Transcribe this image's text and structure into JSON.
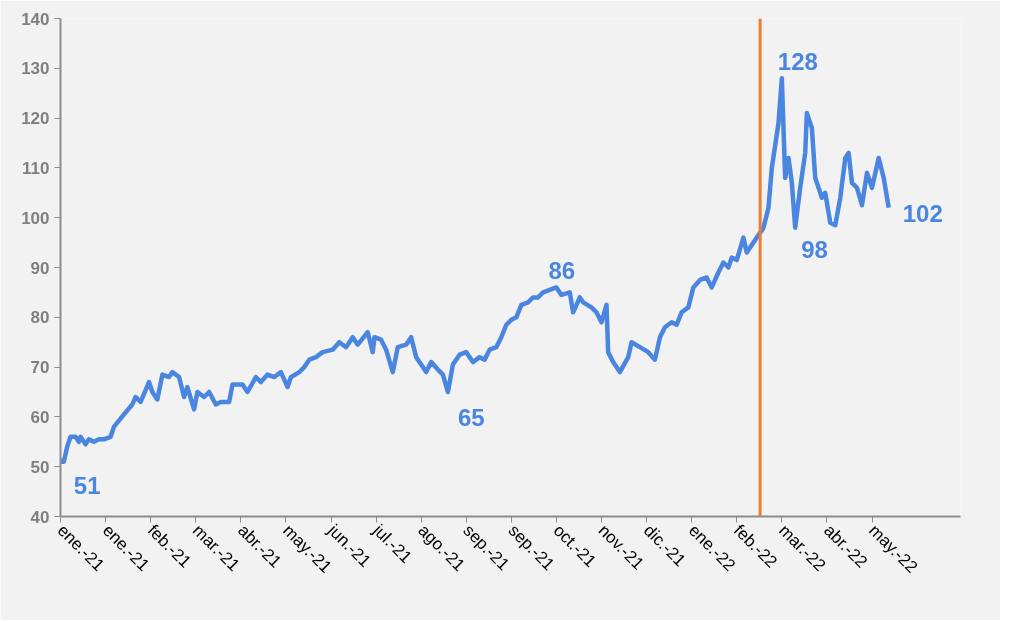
{
  "chart_data": {
    "type": "line",
    "x": [
      "2021-01-01",
      "2021-01-02",
      "2021-01-03",
      "2021-01-05",
      "2021-01-07",
      "2021-01-10",
      "2021-01-12",
      "2021-01-13",
      "2021-01-16",
      "2021-01-18",
      "2021-01-21",
      "2021-01-24",
      "2021-01-27",
      "2021-01-31",
      "2021-02-02",
      "2021-02-08",
      "2021-02-13",
      "2021-02-15",
      "2021-02-18",
      "2021-02-23",
      "2021-02-25",
      "2021-02-28",
      "2021-03-03",
      "2021-03-07",
      "2021-03-09",
      "2021-03-13",
      "2021-03-16",
      "2021-03-18",
      "2021-03-22",
      "2021-03-24",
      "2021-03-28",
      "2021-03-31",
      "2021-04-04",
      "2021-04-07",
      "2021-04-12",
      "2021-04-14",
      "2021-04-20",
      "2021-04-23",
      "2021-04-28",
      "2021-05-01",
      "2021-05-05",
      "2021-05-09",
      "2021-05-13",
      "2021-05-17",
      "2021-05-19",
      "2021-05-24",
      "2021-05-27",
      "2021-05-30",
      "2021-06-03",
      "2021-06-07",
      "2021-06-13",
      "2021-06-17",
      "2021-06-21",
      "2021-06-25",
      "2021-06-28",
      "2021-07-04",
      "2021-07-07",
      "2021-07-08",
      "2021-07-12",
      "2021-07-15",
      "2021-07-19",
      "2021-07-22",
      "2021-07-27",
      "2021-07-30",
      "2021-08-02",
      "2021-08-05",
      "2021-08-08",
      "2021-08-11",
      "2021-08-15",
      "2021-08-18",
      "2021-08-21",
      "2021-08-24",
      "2021-08-28",
      "2021-09-01",
      "2021-09-05",
      "2021-09-09",
      "2021-09-12",
      "2021-09-15",
      "2021-09-19",
      "2021-09-22",
      "2021-09-25",
      "2021-09-28",
      "2021-10-01",
      "2021-10-04",
      "2021-10-08",
      "2021-10-11",
      "2021-10-14",
      "2021-10-17",
      "2021-10-21",
      "2021-10-25",
      "2021-10-28",
      "2021-11-02",
      "2021-11-04",
      "2021-11-08",
      "2021-11-10",
      "2021-11-15",
      "2021-11-18",
      "2021-11-21",
      "2021-11-24",
      "2021-11-25",
      "2021-11-28",
      "2021-12-02",
      "2021-12-07",
      "2021-12-09",
      "2021-12-14",
      "2021-12-19",
      "2021-12-23",
      "2021-12-26",
      "2021-12-29",
      "2022-01-02",
      "2022-01-05",
      "2022-01-08",
      "2022-01-12",
      "2022-01-15",
      "2022-01-19",
      "2022-01-23",
      "2022-01-26",
      "2022-01-30",
      "2022-02-02",
      "2022-02-05",
      "2022-02-07",
      "2022-02-10",
      "2022-02-14",
      "2022-02-16",
      "2022-02-20",
      "2022-02-22",
      "2022-02-26",
      "2022-03-01",
      "2022-03-03",
      "2022-03-07",
      "2022-03-09",
      "2022-03-11",
      "2022-03-13",
      "2022-03-15",
      "2022-03-17",
      "2022-03-20",
      "2022-03-23",
      "2022-03-24",
      "2022-03-27",
      "2022-03-29",
      "2022-04-02",
      "2022-04-04",
      "2022-04-07",
      "2022-04-10",
      "2022-04-13",
      "2022-04-16",
      "2022-04-18",
      "2022-04-20",
      "2022-04-23",
      "2022-04-26",
      "2022-04-29",
      "2022-05-02",
      "2022-05-06",
      "2022-05-09",
      "2022-05-12"
    ],
    "series": [
      {
        "color": "#4a86e0",
        "values": [
          51.5,
          51,
          51,
          54,
          56,
          56,
          55,
          56,
          54.5,
          55.5,
          55,
          55.5,
          55.5,
          56,
          58,
          60.5,
          62.5,
          64,
          63,
          67,
          65,
          63.5,
          68.5,
          68,
          69,
          68,
          64,
          66,
          61.5,
          65,
          64,
          65,
          62.5,
          63,
          63,
          66.5,
          66.5,
          65,
          68,
          67,
          68.5,
          68,
          69,
          66,
          68,
          69,
          70,
          71.5,
          72,
          73,
          73.5,
          75,
          74,
          76,
          74.5,
          77,
          73,
          76,
          75.5,
          73.5,
          69,
          74,
          74.5,
          76,
          72,
          70.5,
          69,
          71,
          69.5,
          68.5,
          65,
          70.5,
          72.5,
          73,
          71,
          72,
          71.5,
          73.5,
          74,
          76,
          78.5,
          79.5,
          80,
          82.5,
          83,
          84,
          84,
          85,
          85.5,
          86,
          84.5,
          85,
          81,
          84,
          83,
          82,
          81,
          79,
          82.5,
          73,
          71,
          69,
          72,
          75,
          74,
          73,
          71.5,
          76,
          78,
          79,
          78.5,
          81,
          82,
          86,
          87.5,
          88,
          86,
          89,
          91,
          90,
          92,
          91.5,
          96,
          93,
          95,
          96,
          98,
          102,
          110,
          119,
          128,
          108,
          112,
          107,
          98,
          106,
          113,
          121,
          118,
          108,
          104,
          105,
          99,
          98.5,
          104,
          112,
          113,
          107,
          106,
          102.5,
          109,
          106,
          112,
          108,
          102
        ]
      }
    ],
    "xlim": [
      "2021-01-01",
      "2022-06-24"
    ],
    "xticks": [
      {
        "value": "2021-01-01",
        "label": "ene.-21"
      },
      {
        "value": "2021-01-28",
        "label": "ene.-21"
      },
      {
        "value": "2021-02-24",
        "label": "feb.-21"
      },
      {
        "value": "2021-03-23",
        "label": "mar.-21"
      },
      {
        "value": "2021-04-19",
        "label": "abr.-21"
      },
      {
        "value": "2021-05-16",
        "label": "may.-21"
      },
      {
        "value": "2021-06-12",
        "label": "jun.-21"
      },
      {
        "value": "2021-07-09",
        "label": "jul.-21"
      },
      {
        "value": "2021-08-05",
        "label": "ago.-21"
      },
      {
        "value": "2021-09-01",
        "label": "sep.-21"
      },
      {
        "value": "2021-09-28",
        "label": "sep.-21"
      },
      {
        "value": "2021-10-25",
        "label": "oct.-21"
      },
      {
        "value": "2021-11-21",
        "label": "nov.-21"
      },
      {
        "value": "2021-12-18",
        "label": "dic.-21"
      },
      {
        "value": "2022-01-14",
        "label": "ene.-22"
      },
      {
        "value": "2022-02-10",
        "label": "feb.-22"
      },
      {
        "value": "2022-03-09",
        "label": "mar.-22"
      },
      {
        "value": "2022-04-05",
        "label": "abr.-22"
      },
      {
        "value": "2022-05-02",
        "label": "may.-22"
      }
    ],
    "ylim": [
      40,
      140
    ],
    "yticks": [
      40,
      50,
      60,
      70,
      80,
      90,
      100,
      110,
      120,
      130,
      140
    ],
    "grid": false,
    "marker": "none",
    "line_style": "solid",
    "ref_lines": [
      {
        "axis": "x",
        "value": "2022-02-24",
        "color": "#ed7d31"
      }
    ],
    "annotations": [
      {
        "text": "51",
        "x": "2021-01-03",
        "y": 51
      },
      {
        "text": "65",
        "x": "2021-08-21",
        "y": 65
      },
      {
        "text": "86",
        "x": "2021-10-25",
        "y": 86
      },
      {
        "text": "128",
        "x": "2022-03-09",
        "y": 128
      },
      {
        "text": "98",
        "x": "2022-03-17",
        "y": 98
      },
      {
        "text": "102",
        "x": "2022-05-12",
        "y": 102
      }
    ]
  }
}
